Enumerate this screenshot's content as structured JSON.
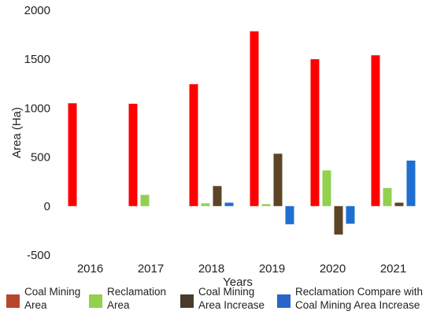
{
  "chart_data": {
    "type": "bar",
    "title": "",
    "xlabel": "Years",
    "ylabel": "Area (Ha)",
    "ylim": [
      -500,
      2000
    ],
    "yticks": [
      -500,
      0,
      500,
      1000,
      1500,
      2000
    ],
    "categories": [
      "2016",
      "2017",
      "2018",
      "2019",
      "2020",
      "2021"
    ],
    "series": [
      {
        "name": "Coal Mining Area",
        "legend_label": "Coal Mining\nArea",
        "color": "#ff0000",
        "swatch_color": "#b7472a",
        "values": [
          1050,
          1045,
          1245,
          1785,
          1500,
          1540
        ]
      },
      {
        "name": "Reclamation Area",
        "legend_label": "Reclamation\nArea",
        "color": "#92d050",
        "swatch_color": "#92d050",
        "values": [
          null,
          115,
          28,
          20,
          365,
          185
        ]
      },
      {
        "name": "Coal Mining Area Increase",
        "legend_label": "Coal Mining\nArea Increase",
        "color": "#5c4425",
        "swatch_color": "#4a3b2a",
        "values": [
          null,
          null,
          205,
          535,
          -290,
          35
        ]
      },
      {
        "name": "Reclamation Compare with Coal Mining Area Increase",
        "legend_label": "Reclamation Compare with\nCoal Mining Area Increase",
        "color": "#1f6fd1",
        "swatch_color": "#2b63c8",
        "values": [
          null,
          null,
          35,
          -185,
          -180,
          465
        ]
      }
    ],
    "grid": false,
    "legend_position": "bottom"
  }
}
